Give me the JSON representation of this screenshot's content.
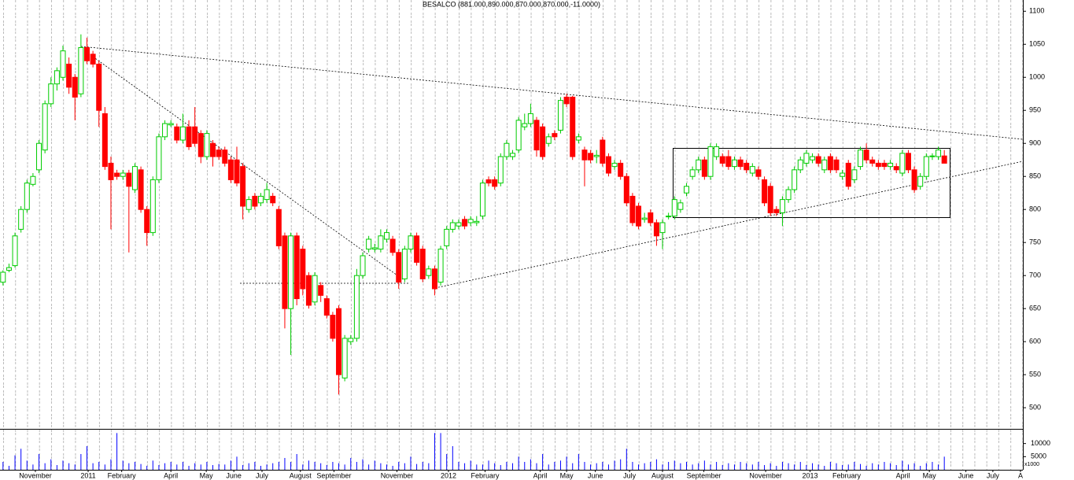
{
  "chart_data": {
    "type": "candlestick",
    "title": "BESALCO (881.000,890.000,870.000,870.000,-11.0000)",
    "open": [
      690,
      708,
      715,
      770,
      800,
      838,
      860,
      890,
      960,
      990,
      1000,
      1020,
      1000,
      975,
      1045,
      1035,
      1020,
      945,
      870,
      855,
      850,
      855,
      830,
      860,
      800,
      765,
      845,
      910,
      928,
      925,
      905,
      925,
      925,
      915,
      880,
      900,
      890,
      890,
      875,
      875,
      865,
      800,
      820,
      810,
      815,
      820,
      800,
      760,
      650,
      760,
      740,
      700,
      660,
      685,
      665,
      640,
      650,
      545,
      600,
      605,
      700,
      740,
      740,
      740,
      755,
      755,
      735,
      695,
      740,
      760,
      740,
      700,
      710,
      690,
      745,
      770,
      775,
      785,
      780,
      780,
      790,
      845,
      845,
      840,
      880,
      880,
      890,
      925,
      930,
      935,
      925,
      900,
      915,
      920,
      970,
      970,
      905,
      890,
      885,
      880,
      905,
      880,
      865,
      870,
      850,
      820,
      805,
      785,
      795,
      780,
      765,
      790,
      790,
      800,
      825,
      850,
      860,
      875,
      850,
      880,
      880,
      880,
      865,
      875,
      870,
      855,
      860,
      845,
      835,
      800,
      795,
      815,
      830,
      860,
      870,
      875,
      880,
      860,
      880,
      875,
      850,
      870,
      845,
      865,
      890,
      875,
      870,
      870,
      865,
      865,
      855,
      885,
      860,
      835,
      850,
      880,
      880,
      881
    ],
    "high": [
      708,
      718,
      765,
      805,
      845,
      855,
      905,
      965,
      1000,
      1015,
      1048,
      1030,
      1005,
      1065,
      1060,
      1040,
      1025,
      955,
      880,
      860,
      860,
      860,
      870,
      865,
      805,
      850,
      915,
      935,
      935,
      930,
      945,
      935,
      955,
      920,
      920,
      905,
      895,
      895,
      880,
      895,
      870,
      820,
      825,
      825,
      840,
      825,
      805,
      765,
      765,
      765,
      745,
      705,
      705,
      690,
      670,
      645,
      655,
      610,
      610,
      710,
      735,
      760,
      748,
      770,
      770,
      760,
      740,
      745,
      765,
      765,
      745,
      715,
      715,
      745,
      775,
      785,
      785,
      790,
      790,
      790,
      845,
      850,
      850,
      885,
      905,
      890,
      940,
      945,
      960,
      940,
      930,
      915,
      920,
      970,
      975,
      972,
      915,
      895,
      890,
      890,
      910,
      885,
      875,
      875,
      855,
      825,
      810,
      795,
      800,
      785,
      785,
      795,
      820,
      815,
      840,
      865,
      880,
      880,
      900,
      900,
      885,
      890,
      880,
      880,
      875,
      870,
      865,
      850,
      840,
      805,
      820,
      835,
      865,
      880,
      890,
      885,
      885,
      880,
      885,
      880,
      860,
      875,
      865,
      895,
      900,
      880,
      875,
      875,
      875,
      870,
      890,
      890,
      865,
      855,
      885,
      885,
      895,
      890
    ],
    "low": [
      685,
      705,
      712,
      765,
      795,
      835,
      855,
      885,
      955,
      980,
      995,
      975,
      935,
      970,
      1020,
      1015,
      925,
      860,
      770,
      845,
      845,
      735,
      825,
      795,
      745,
      760,
      840,
      905,
      925,
      900,
      900,
      890,
      895,
      870,
      875,
      865,
      875,
      865,
      840,
      835,
      785,
      795,
      800,
      805,
      810,
      805,
      740,
      620,
      580,
      655,
      670,
      650,
      655,
      660,
      635,
      600,
      520,
      540,
      595,
      600,
      695,
      735,
      735,
      735,
      750,
      730,
      680,
      690,
      735,
      715,
      690,
      695,
      670,
      685,
      740,
      765,
      770,
      770,
      775,
      775,
      785,
      835,
      830,
      835,
      875,
      875,
      885,
      920,
      925,
      880,
      875,
      895,
      905,
      915,
      955,
      875,
      900,
      835,
      870,
      870,
      865,
      850,
      860,
      845,
      805,
      775,
      770,
      780,
      775,
      745,
      740,
      785,
      785,
      795,
      820,
      845,
      855,
      845,
      845,
      875,
      865,
      860,
      860,
      860,
      855,
      850,
      845,
      805,
      790,
      790,
      775,
      810,
      825,
      855,
      865,
      870,
      865,
      855,
      855,
      855,
      845,
      830,
      840,
      860,
      870,
      865,
      860,
      860,
      860,
      855,
      850,
      855,
      825,
      830,
      845,
      875,
      875,
      870
    ],
    "close": [
      705,
      712,
      760,
      800,
      840,
      850,
      900,
      960,
      990,
      1010,
      1040,
      985,
      970,
      1045,
      1025,
      1020,
      950,
      865,
      845,
      850,
      855,
      835,
      865,
      800,
      765,
      845,
      910,
      930,
      930,
      905,
      925,
      895,
      900,
      880,
      915,
      880,
      880,
      870,
      845,
      840,
      805,
      815,
      805,
      820,
      830,
      810,
      745,
      650,
      760,
      665,
      680,
      655,
      700,
      670,
      640,
      605,
      550,
      605,
      605,
      700,
      730,
      755,
      742,
      760,
      765,
      735,
      690,
      740,
      760,
      720,
      695,
      710,
      680,
      740,
      770,
      780,
      780,
      775,
      785,
      782,
      840,
      840,
      835,
      880,
      900,
      885,
      935,
      930,
      945,
      890,
      880,
      910,
      910,
      965,
      960,
      880,
      910,
      875,
      875,
      882,
      870,
      855,
      870,
      850,
      810,
      780,
      775,
      787,
      780,
      760,
      780,
      790,
      815,
      810,
      835,
      860,
      875,
      850,
      895,
      895,
      870,
      865,
      875,
      865,
      860,
      865,
      850,
      810,
      795,
      795,
      815,
      830,
      860,
      875,
      885,
      880,
      870,
      875,
      860,
      860,
      855,
      835,
      860,
      890,
      875,
      870,
      865,
      865,
      870,
      860,
      885,
      860,
      830,
      850,
      880,
      881,
      890,
      870
    ],
    "volume": [
      3000,
      1500,
      5500,
      8000,
      3500,
      2000,
      6000,
      2500,
      4000,
      1800,
      3500,
      2500,
      2000,
      6000,
      9000,
      2500,
      3000,
      2000,
      4000,
      14000,
      3500,
      2500,
      3000,
      2200,
      1500,
      3500,
      1800,
      2500,
      3000,
      2000,
      3000,
      1500,
      2500,
      2000,
      3000,
      1800,
      2200,
      2000,
      3500,
      5000,
      1800,
      2500,
      3000,
      1500,
      2000,
      2500,
      3000,
      4500,
      3000,
      6000,
      2000,
      3500,
      3000,
      2500,
      1800,
      3000,
      2500,
      2000,
      4500,
      3000,
      4000,
      2000,
      3500,
      2500,
      2000,
      1500,
      3000,
      2500,
      5000,
      2200,
      3000,
      2500,
      14000,
      14000,
      6000,
      9000,
      3000,
      2500,
      3500,
      2000,
      2000,
      3500,
      2500,
      1800,
      3000,
      2500,
      5000,
      3000,
      4000,
      2500,
      6000,
      2000,
      3000,
      3500,
      5000,
      2500,
      6000,
      3000,
      2000,
      2500,
      3000,
      2000,
      3500,
      4000,
      8000,
      3000,
      2000,
      2500,
      3000,
      4000,
      2000,
      3000,
      3500,
      2500,
      3000,
      2000,
      2500,
      3500,
      2000,
      3000,
      1800,
      2500,
      2000,
      3000,
      2500,
      2000,
      3000,
      1800,
      2500,
      1500,
      3000,
      2500,
      2000,
      3000,
      1800,
      2500,
      2000,
      1500,
      3000,
      2500,
      1800,
      2000,
      3000,
      2200,
      1500,
      2500,
      2000,
      3000,
      2500,
      1800,
      3500,
      2000,
      2500,
      1500,
      2500,
      3000,
      2000,
      5000
    ],
    "up_color": "#00cc00",
    "down_color": "#ff0000",
    "volume_color": "#0000ff",
    "xlim": [
      -0.5,
      170.1
    ],
    "ylim": [
      468,
      1117
    ],
    "yticks": [
      500,
      550,
      600,
      650,
      700,
      750,
      800,
      850,
      900,
      950,
      1000,
      1050,
      1100
    ],
    "volume_ylim": [
      0,
      15000
    ],
    "volume_yticks": [
      5000,
      10000
    ],
    "volume_label": "x1000",
    "xticks": [
      {
        "value": 5.4,
        "label": "November"
      },
      {
        "value": 14.2,
        "label": "2011"
      },
      {
        "value": 19.8,
        "label": "February"
      },
      {
        "value": 28,
        "label": "April"
      },
      {
        "value": 33.9,
        "label": "May"
      },
      {
        "value": 38.5,
        "label": "June"
      },
      {
        "value": 43.2,
        "label": "July"
      },
      {
        "value": 49.6,
        "label": "August"
      },
      {
        "value": 55.2,
        "label": "September"
      },
      {
        "value": 65.7,
        "label": "November"
      },
      {
        "value": 74.3,
        "label": "2012"
      },
      {
        "value": 80.4,
        "label": "February"
      },
      {
        "value": 89.6,
        "label": "April"
      },
      {
        "value": 94,
        "label": "May"
      },
      {
        "value": 98.8,
        "label": "June"
      },
      {
        "value": 104.5,
        "label": "July"
      },
      {
        "value": 110,
        "label": "August"
      },
      {
        "value": 116.9,
        "label": "September"
      },
      {
        "value": 127.2,
        "label": "November"
      },
      {
        "value": 134.6,
        "label": "2013"
      },
      {
        "value": 140.7,
        "label": "February"
      },
      {
        "value": 150.1,
        "label": "April"
      },
      {
        "value": 154.5,
        "label": "May"
      },
      {
        "value": 160.6,
        "label": "June"
      },
      {
        "value": 165.1,
        "label": "July"
      },
      {
        "value": 169.7,
        "label": "A"
      }
    ]
  }
}
